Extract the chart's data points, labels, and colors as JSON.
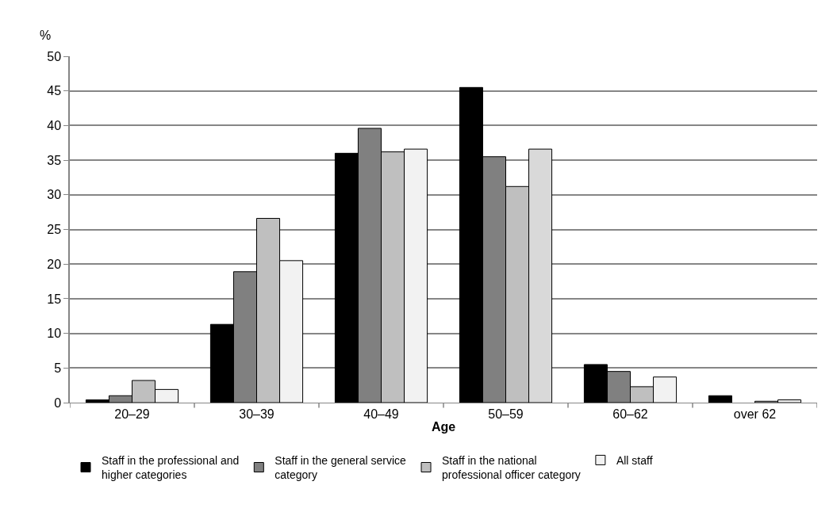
{
  "chart_data": {
    "type": "bar",
    "xlabel": "Age",
    "ylabel": "%",
    "categories": [
      "20–29",
      "30–39",
      "40–49",
      "50–59",
      "60–62",
      "over 62"
    ],
    "series": [
      {
        "name": "Staff in the professional and higher categories",
        "color": "#000000",
        "values": [
          0.4,
          11.3,
          36.0,
          45.5,
          5.5,
          1.0
        ]
      },
      {
        "name": "Staff in the general service category",
        "color": "#808080",
        "values": [
          1.0,
          18.9,
          39.6,
          35.5,
          4.5,
          0
        ]
      },
      {
        "name": "Staff in the national professional officer category",
        "color": "#bfbfbf",
        "values": [
          3.2,
          26.6,
          36.2,
          31.2,
          2.3,
          0.2
        ]
      },
      {
        "name": "All staff",
        "color": "#f2f2f2",
        "colors": [
          "#f2f2f2",
          "#f2f2f2",
          "#f2f2f2",
          "#d9d9d9",
          "#f2f2f2",
          "#f2f2f2"
        ],
        "values": [
          1.9,
          20.5,
          36.6,
          36.6,
          3.7,
          0.4
        ]
      }
    ],
    "ylim": [
      0,
      50
    ],
    "yticks": [
      0,
      5,
      10,
      15,
      20,
      25,
      30,
      35,
      40,
      45,
      50
    ],
    "grid": "y",
    "legend": "bottom"
  }
}
